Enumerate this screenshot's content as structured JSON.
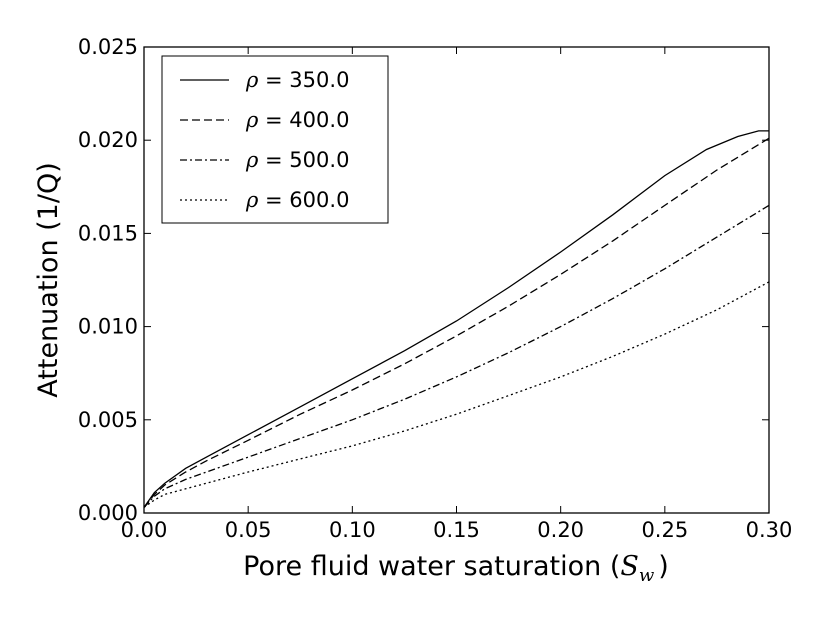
{
  "chart_data": {
    "type": "line",
    "title": "",
    "xlabel": "Pore fluid water saturation (",
    "xlabel_math": "S",
    "xlabel_sub": "w",
    "xlabel_close": ")",
    "ylabel": "Attenuation (1/Q)",
    "xlim": [
      0,
      0.3
    ],
    "ylim": [
      0,
      0.025
    ],
    "x_ticks": [
      "0.00",
      "0.05",
      "0.10",
      "0.15",
      "0.20",
      "0.25",
      "0.30"
    ],
    "y_ticks": [
      "0.000",
      "0.005",
      "0.010",
      "0.015",
      "0.020",
      "0.025"
    ],
    "grid": false,
    "legend_position": "top-left",
    "series": [
      {
        "name": "350.0",
        "legend_symbol": "ρ",
        "legend_eq": " = 350.0",
        "style": "solid",
        "x": [
          0,
          0.005,
          0.01,
          0.02,
          0.03,
          0.05,
          0.075,
          0.1,
          0.125,
          0.15,
          0.175,
          0.2,
          0.225,
          0.25,
          0.27,
          0.285,
          0.295,
          0.3
        ],
        "y": [
          0.0003,
          0.0011,
          0.0016,
          0.0024,
          0.003,
          0.0042,
          0.0057,
          0.0072,
          0.0087,
          0.0103,
          0.0121,
          0.014,
          0.016,
          0.0181,
          0.0195,
          0.0202,
          0.0205,
          0.0205
        ]
      },
      {
        "name": "400.0",
        "legend_symbol": "ρ",
        "legend_eq": " = 400.0",
        "style": "dashed",
        "x": [
          0,
          0.005,
          0.01,
          0.02,
          0.03,
          0.05,
          0.075,
          0.1,
          0.125,
          0.15,
          0.175,
          0.2,
          0.225,
          0.25,
          0.275,
          0.3
        ],
        "y": [
          0.0003,
          0.001,
          0.0015,
          0.0022,
          0.0028,
          0.0039,
          0.0053,
          0.0066,
          0.008,
          0.0095,
          0.0111,
          0.0128,
          0.0146,
          0.0165,
          0.0184,
          0.0201
        ]
      },
      {
        "name": "500.0",
        "legend_symbol": "ρ",
        "legend_eq": " = 500.0",
        "style": "dashdot",
        "x": [
          0,
          0.005,
          0.01,
          0.02,
          0.03,
          0.05,
          0.075,
          0.1,
          0.125,
          0.15,
          0.175,
          0.2,
          0.225,
          0.25,
          0.275,
          0.3
        ],
        "y": [
          0.0003,
          0.0009,
          0.0013,
          0.0018,
          0.0022,
          0.003,
          0.004,
          0.005,
          0.0061,
          0.0073,
          0.0086,
          0.01,
          0.0115,
          0.0131,
          0.0148,
          0.0165
        ]
      },
      {
        "name": "600.0",
        "legend_symbol": "ρ",
        "legend_eq": " = 600.0",
        "style": "dotted",
        "x": [
          0,
          0.005,
          0.01,
          0.02,
          0.03,
          0.05,
          0.075,
          0.1,
          0.125,
          0.15,
          0.175,
          0.2,
          0.225,
          0.25,
          0.275,
          0.3
        ],
        "y": [
          0.0003,
          0.0007,
          0.001,
          0.0013,
          0.0016,
          0.0022,
          0.0029,
          0.0036,
          0.0044,
          0.0053,
          0.0063,
          0.0073,
          0.0084,
          0.0096,
          0.0109,
          0.0124
        ]
      }
    ]
  }
}
